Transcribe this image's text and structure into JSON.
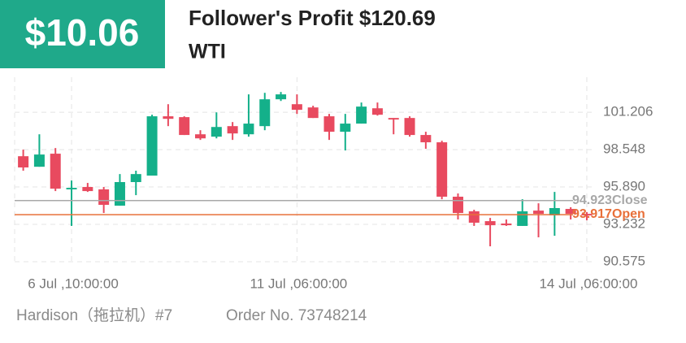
{
  "header": {
    "profit": "$10.06",
    "title": "Follower's Profit $120.69",
    "symbol": "WTI"
  },
  "chart_data": {
    "type": "candlestick",
    "categories": [
      null,
      null,
      null,
      "6 Jul ,10:00:00",
      null,
      null,
      null,
      null,
      null,
      null,
      null,
      null,
      null,
      null,
      null,
      null,
      null,
      "11 Jul ,06:00:00",
      null,
      null,
      null,
      null,
      null,
      null,
      null,
      null,
      null,
      null,
      null,
      null,
      null,
      null,
      null,
      null,
      null,
      "14 Jul ,06:00:00"
    ],
    "open": [
      98.08,
      97.33,
      98.26,
      95.72,
      95.89,
      95.72,
      94.56,
      96.24,
      96.7,
      100.92,
      100.86,
      99.64,
      99.47,
      100.22,
      99.64,
      100.22,
      102.13,
      101.78,
      101.55,
      100.92,
      99.82,
      100.4,
      101.49,
      100.8,
      100.8,
      99.59,
      99.07,
      95.2,
      94.16,
      93.46,
      93.29,
      93.12,
      94.21,
      93.87,
      94.33,
      93.98
    ],
    "high": [
      98.55,
      99.64,
      98.66,
      96.35,
      96.18,
      95.89,
      96.81,
      97.05,
      101.03,
      101.78,
      100.92,
      99.93,
      101.2,
      100.51,
      102.48,
      102.59,
      102.65,
      102.48,
      101.67,
      101.09,
      101.09,
      101.9,
      101.9,
      100.8,
      100.92,
      99.82,
      99.18,
      95.43,
      94.27,
      93.69,
      93.58,
      95.02,
      94.73,
      95.54,
      94.45,
      94.1
    ],
    "low": [
      97.05,
      97.33,
      95.6,
      93.12,
      95.54,
      94.04,
      94.56,
      95.31,
      96.7,
      100.22,
      99.59,
      99.24,
      99.35,
      99.24,
      99.47,
      99.93,
      102.01,
      101.09,
      100.8,
      99.24,
      98.49,
      100.4,
      100.97,
      99.64,
      99.47,
      98.61,
      95.02,
      93.58,
      93.12,
      91.67,
      93.12,
      93.12,
      92.31,
      92.42,
      93.58,
      93.52
    ],
    "close": [
      97.28,
      98.2,
      95.77,
      95.83,
      95.6,
      94.62,
      96.24,
      96.81,
      100.92,
      100.74,
      99.59,
      99.35,
      100.16,
      99.7,
      100.4,
      102.13,
      102.48,
      101.38,
      100.8,
      99.82,
      100.4,
      101.61,
      101.03,
      100.69,
      99.59,
      99.07,
      95.2,
      94.04,
      93.35,
      93.17,
      93.17,
      94.16,
      93.98,
      94.39,
      93.98,
      93.87
    ],
    "up_color": "#14b08a",
    "down_color": "#e84a5f",
    "ylim": [
      90.4,
      103.7
    ],
    "yticks": [
      90.575,
      93.232,
      {
        "value": 95.89,
        "label": "95.890"
      },
      98.548,
      101.206
    ],
    "grid": true,
    "lines": [
      {
        "value": 94.923,
        "label": "Close",
        "color": "#a8a8a8"
      },
      {
        "value": 93.917,
        "label": "Open",
        "color": "#e8703a"
      }
    ]
  },
  "footer": {
    "trader": "Hardison（拖拉机）#7",
    "order": "Order No. 73748214"
  }
}
